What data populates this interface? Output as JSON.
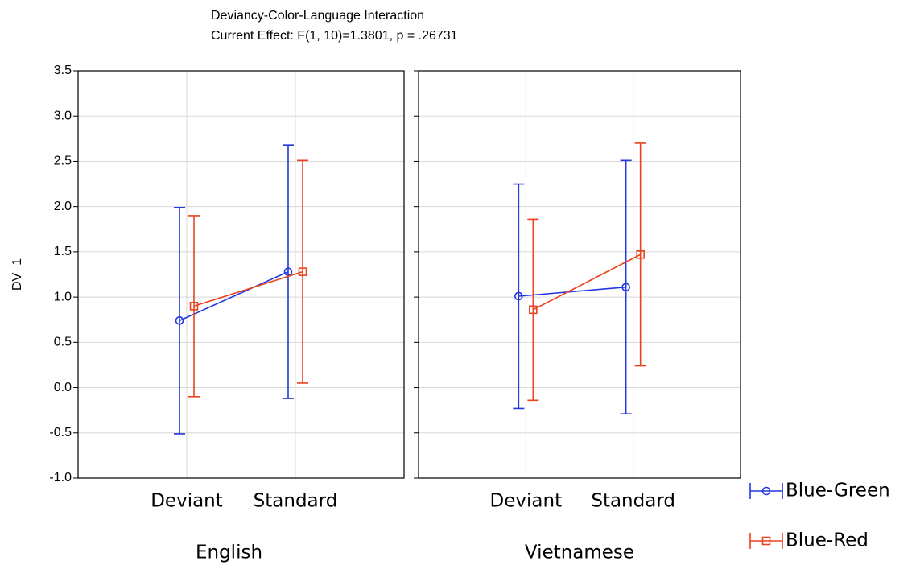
{
  "chart_data": {
    "type": "line",
    "title": "Deviancy-Color-Language Interaction",
    "subtitle": "Current Effect: F(1, 10)=1.3801, p = .26731",
    "y_label": "DV_1",
    "ylim": [
      -1.0,
      3.5
    ],
    "yticks": [
      {
        "value": -1.0,
        "label": "-1.0"
      },
      -0.5,
      {
        "value": 0,
        "label": "0.0"
      },
      0.5,
      {
        "value": 1.0,
        "label": "1.0"
      },
      1.5,
      {
        "value": 2.0,
        "label": "2.0"
      },
      2.5,
      {
        "value": 3.0,
        "label": "3.0"
      },
      3.5
    ],
    "grid": true,
    "series": [
      {
        "name": "Blue-Green",
        "color": "#2238e0",
        "marker": "circle"
      },
      {
        "name": "Blue-Red",
        "color": "#ea4320",
        "marker": "square"
      }
    ],
    "panels": [
      {
        "label": "English",
        "categories": [
          "Deviant",
          "Standard"
        ],
        "series": [
          {
            "values": [
              0.74,
              1.28
            ],
            "errors": [
              1.25,
              1.4
            ]
          },
          {
            "values": [
              0.9,
              1.28
            ],
            "errors": [
              1.0,
              1.23
            ]
          }
        ]
      },
      {
        "label": "Vietnamese",
        "categories": [
          "Deviant",
          "Standard"
        ],
        "series": [
          {
            "values": [
              1.01,
              1.11
            ],
            "errors": [
              1.24,
              1.4
            ]
          },
          {
            "values": [
              0.86,
              1.47
            ],
            "errors": [
              1.0,
              1.23
            ]
          }
        ]
      }
    ]
  }
}
